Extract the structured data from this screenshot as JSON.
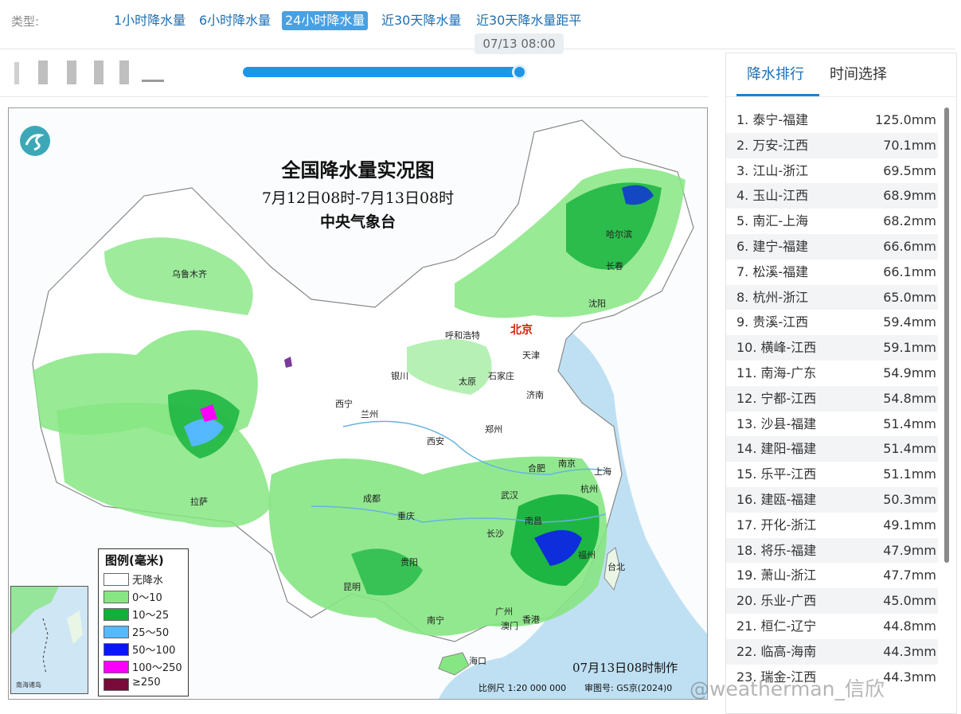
{
  "type_bar": {
    "label": "类型:",
    "tabs": [
      {
        "label": "1小时降水量"
      },
      {
        "label": "6小时降水量"
      },
      {
        "label": "24小时降水量"
      },
      {
        "label": "近30天降水量"
      },
      {
        "label": "近30天降水量距平"
      }
    ],
    "active_tab": "24小时降水量"
  },
  "slider": {
    "tooltip": "07/13 08:00",
    "progress_percent": 100
  },
  "map": {
    "title": "全国降水量实况图",
    "period": "7月12日08时-7月13日08时",
    "org": "中央气象台",
    "cities": [
      {
        "name": "乌鲁木齐"
      },
      {
        "name": "哈尔滨"
      },
      {
        "name": "长春"
      },
      {
        "name": "沈阳"
      },
      {
        "name": "呼和浩特"
      },
      {
        "name": "北京"
      },
      {
        "name": "天津"
      },
      {
        "name": "银川"
      },
      {
        "name": "太原"
      },
      {
        "name": "石家庄"
      },
      {
        "name": "济南"
      },
      {
        "name": "西宁"
      },
      {
        "name": "兰州"
      },
      {
        "name": "西安"
      },
      {
        "name": "郑州"
      },
      {
        "name": "合肥"
      },
      {
        "name": "南京"
      },
      {
        "name": "上海"
      },
      {
        "name": "拉萨"
      },
      {
        "name": "成都"
      },
      {
        "name": "武汉"
      },
      {
        "name": "杭州"
      },
      {
        "name": "重庆"
      },
      {
        "name": "南昌"
      },
      {
        "name": "长沙"
      },
      {
        "name": "贵阳"
      },
      {
        "name": "福州"
      },
      {
        "name": "台北"
      },
      {
        "name": "昆明"
      },
      {
        "name": "广州"
      },
      {
        "name": "南宁"
      },
      {
        "name": "香港"
      },
      {
        "name": "澳门"
      },
      {
        "name": "海口"
      }
    ],
    "legend": {
      "title": "图例(毫米)",
      "items": [
        {
          "label": "无降水",
          "color": "#ffffff"
        },
        {
          "label": "0～10",
          "color": "#86e683"
        },
        {
          "label": "10～25",
          "color": "#12b03a"
        },
        {
          "label": "25～50",
          "color": "#55b9ff"
        },
        {
          "label": "50～100",
          "color": "#0a16f5"
        },
        {
          "label": "100～250",
          "color": "#fa00fa"
        },
        {
          "label": "≥250",
          "color": "#7a0a3a"
        }
      ]
    },
    "inset_label": "南海诸岛",
    "made_time": "07月13日08时制作",
    "scale_text": "比例尺 1:20 000 000",
    "review_text": "审图号: GS京(2024)0"
  },
  "panel": {
    "tabs": [
      {
        "label": "降水排行"
      },
      {
        "label": "时间选择"
      }
    ],
    "ranking": [
      {
        "label": "1. 泰宁-福建",
        "value": "125.0mm"
      },
      {
        "label": "2. 万安-江西",
        "value": "70.1mm"
      },
      {
        "label": "3. 江山-浙江",
        "value": "69.5mm"
      },
      {
        "label": "4. 玉山-江西",
        "value": "68.9mm"
      },
      {
        "label": "5. 南汇-上海",
        "value": "68.2mm"
      },
      {
        "label": "6. 建宁-福建",
        "value": "66.6mm"
      },
      {
        "label": "7. 松溪-福建",
        "value": "66.1mm"
      },
      {
        "label": "8. 杭州-浙江",
        "value": "65.0mm"
      },
      {
        "label": "9. 贵溪-江西",
        "value": "59.4mm"
      },
      {
        "label": "10. 横峰-江西",
        "value": "59.1mm"
      },
      {
        "label": "11. 南海-广东",
        "value": "54.9mm"
      },
      {
        "label": "12. 宁都-江西",
        "value": "54.8mm"
      },
      {
        "label": "13. 沙县-福建",
        "value": "51.4mm"
      },
      {
        "label": "14. 建阳-福建",
        "value": "51.4mm"
      },
      {
        "label": "15. 乐平-江西",
        "value": "51.1mm"
      },
      {
        "label": "16. 建瓯-福建",
        "value": "50.3mm"
      },
      {
        "label": "17. 开化-浙江",
        "value": "49.1mm"
      },
      {
        "label": "18. 将乐-福建",
        "value": "47.9mm"
      },
      {
        "label": "19. 萧山-浙江",
        "value": "47.7mm"
      },
      {
        "label": "20. 乐业-广西",
        "value": "45.0mm"
      },
      {
        "label": "21. 桓仁-辽宁",
        "value": "44.8mm"
      },
      {
        "label": "22. 临高-海南",
        "value": "44.3mm"
      },
      {
        "label": "23. 瑞金-江西",
        "value": "44.3mm"
      }
    ]
  },
  "watermark": "@weatherman_信欣"
}
